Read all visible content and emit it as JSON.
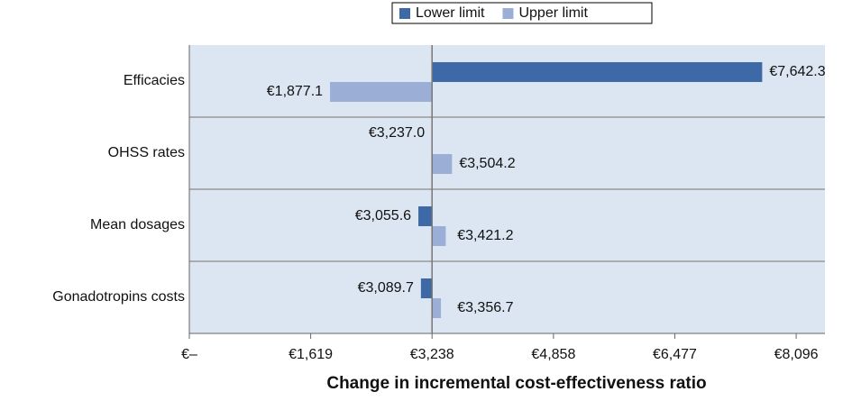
{
  "chart_data": {
    "type": "tornado",
    "categories": [
      "Efficacies",
      "OHSS rates",
      "Mean dosages",
      "Gonadotropins costs"
    ],
    "series": [
      {
        "name": "Lower limit",
        "color": "#3d6aa6",
        "values": [
          7642.3,
          3237.0,
          3055.6,
          3089.7
        ],
        "value_labels": [
          "€7,642.3",
          "€3,237.0",
          "€3,055.6",
          "€3,089.7"
        ]
      },
      {
        "name": "Upper limit",
        "color": "#9aaed6",
        "values": [
          1877.1,
          3504.2,
          3421.2,
          3356.7
        ],
        "value_labels": [
          "€1,877.1",
          "€3,504.2",
          "€3,421.2",
          "€3,356.7"
        ]
      }
    ],
    "base": 3238,
    "xlabel": "Change in incremental cost-effectiveness ratio",
    "xlim": [
      0,
      8480
    ],
    "xticks": [
      {
        "value": 0,
        "label": "€–"
      },
      {
        "value": 1619,
        "label": "€1,619"
      },
      {
        "value": 3238,
        "label": "€3,238"
      },
      {
        "value": 4858,
        "label": "€4,858"
      },
      {
        "value": 6477,
        "label": "€6,477"
      },
      {
        "value": 8096,
        "label": "€8,096"
      }
    ],
    "legend": "top"
  }
}
